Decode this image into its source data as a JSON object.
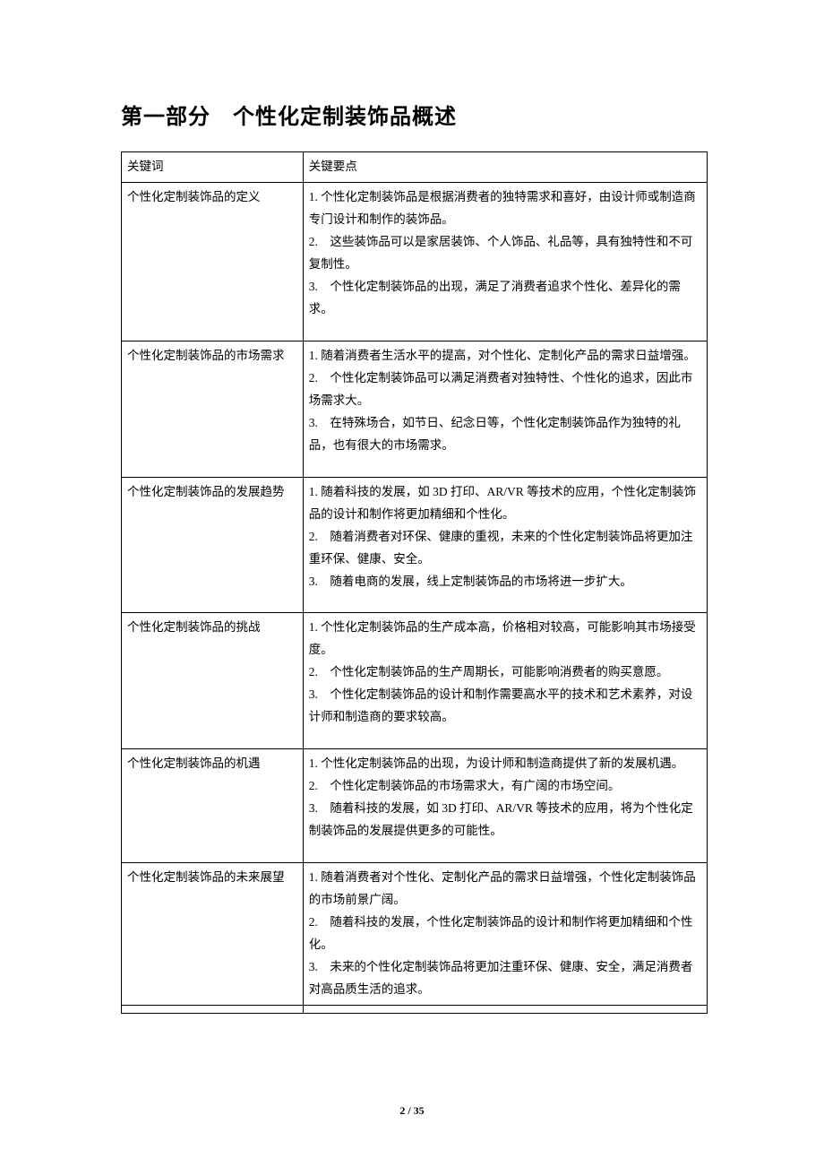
{
  "title": "第一部分　个性化定制装饰品概述",
  "table": {
    "header": {
      "col1": "关键词",
      "col2": "关键要点"
    },
    "rows": [
      {
        "keyword": "个性化定制装饰品的定义",
        "content": "1. 个性化定制装饰品是根据消费者的独特需求和喜好，由设计师或制造商专门设计和制作的装饰品。\n2.　这些装饰品可以是家居装饰、个人饰品、礼品等，具有独特性和不可复制性。\n3.　个性化定制装饰品的出现，满足了消费者追求个性化、差异化的需求。"
      },
      {
        "keyword": "个性化定制装饰品的市场需求",
        "content": "1. 随着消费者生活水平的提高，对个性化、定制化产品的需求日益增强。\n2.　个性化定制装饰品可以满足消费者对独特性、个性化的追求，因此市场需求大。\n3.　在特殊场合，如节日、纪念日等，个性化定制装饰品作为独特的礼品，也有很大的市场需求。"
      },
      {
        "keyword": "个性化定制装饰品的发展趋势",
        "content": "1. 随着科技的发展，如 3D 打印、AR/VR 等技术的应用，个性化定制装饰品的设计和制作将更加精细和个性化。\n2.　随着消费者对环保、健康的重视，未来的个性化定制装饰品将更加注重环保、健康、安全。\n3.　随着电商的发展，线上定制装饰品的市场将进一步扩大。"
      },
      {
        "keyword": "个性化定制装饰品的挑战",
        "content": "1. 个性化定制装饰品的生产成本高，价格相对较高，可能影响其市场接受度。\n2.　个性化定制装饰品的生产周期长，可能影响消费者的购买意愿。\n3.　个性化定制装饰品的设计和制作需要高水平的技术和艺术素养，对设计师和制造商的要求较高。"
      },
      {
        "keyword": "个性化定制装饰品的机遇",
        "content": "1. 个性化定制装饰品的出现，为设计师和制造商提供了新的发展机遇。\n2.　个性化定制装饰品的市场需求大，有广阔的市场空间。\n3.　随着科技的发展，如 3D 打印、AR/VR 等技术的应用，将为个性化定制装饰品的发展提供更多的可能性。"
      },
      {
        "keyword": "个性化定制装饰品的未来展望",
        "content": "1. 随着消费者对个性化、定制化产品的需求日益增强，个性化定制装饰品的市场前景广阔。\n2.　随着科技的发展，个性化定制装饰品的设计和制作将更加精细和个性化。\n3.　未来的个性化定制装饰品将更加注重环保、健康、安全，满足消费者对高品质生活的追求。"
      }
    ],
    "footer": {
      "col1": "",
      "col2": ""
    }
  },
  "pageNumber": {
    "current": "2",
    "separator": " / ",
    "total": "35"
  }
}
